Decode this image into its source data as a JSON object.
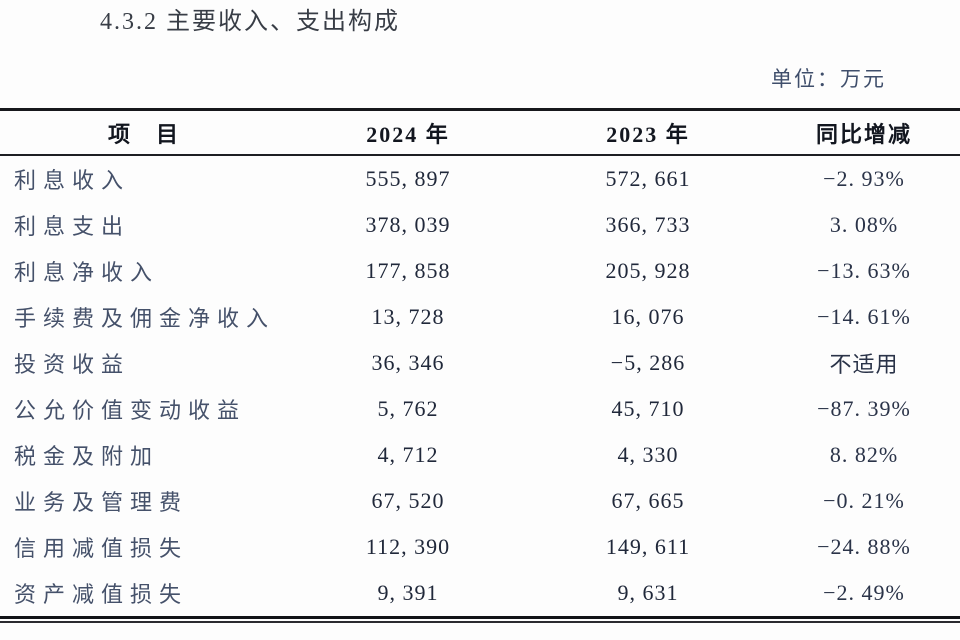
{
  "page": {
    "title": "4.3.2 主要收入、支出构成",
    "unit_label": "单位：万元"
  },
  "colors": {
    "background": "#fdfdfd",
    "title_text": "#383d46",
    "unit_text": "#3f4e6b",
    "header_text": "#12161f",
    "item_text": "#45516a",
    "value_text": "#20283a",
    "rule": "#17181c"
  },
  "table": {
    "columns": [
      "项　目",
      "2024 年",
      "2023 年",
      "同比增减"
    ],
    "rows": [
      {
        "item": "利息收入",
        "y2024": "555, 897",
        "y2023": "572, 661",
        "change": "−2. 93%"
      },
      {
        "item": "利息支出",
        "y2024": "378, 039",
        "y2023": "366, 733",
        "change": "3. 08%"
      },
      {
        "item": "利息净收入",
        "y2024": "177, 858",
        "y2023": "205, 928",
        "change": "−13. 63%"
      },
      {
        "item": "手续费及佣金净收入",
        "y2024": "13, 728",
        "y2023": "16, 076",
        "change": "−14. 61%"
      },
      {
        "item": "投资收益",
        "y2024": "36, 346",
        "y2023": "−5, 286",
        "change": "不适用"
      },
      {
        "item": "公允价值变动收益",
        "y2024": "5, 762",
        "y2023": "45, 710",
        "change": "−87. 39%"
      },
      {
        "item": "税金及附加",
        "y2024": "4, 712",
        "y2023": "4, 330",
        "change": "8. 82%"
      },
      {
        "item": "业务及管理费",
        "y2024": "67, 520",
        "y2023": "67, 665",
        "change": "−0. 21%"
      },
      {
        "item": "信用减值损失",
        "y2024": "112, 390",
        "y2023": "149, 611",
        "change": "−24. 88%"
      },
      {
        "item": "资产减值损失",
        "y2024": "9, 391",
        "y2023": "9, 631",
        "change": "−2. 49%"
      }
    ]
  }
}
